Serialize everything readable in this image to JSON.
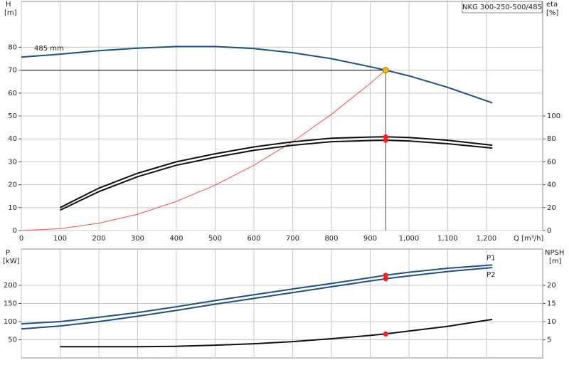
{
  "chart_data": [
    {
      "type": "line",
      "title": "NKG 300-250-500/485",
      "y_label": "H",
      "y_unit": "[m]",
      "y2_label": "eta",
      "y2_unit": "[%]",
      "x_label": "Q [m³/h]",
      "x": [
        0,
        100,
        200,
        300,
        400,
        500,
        600,
        700,
        800,
        900,
        940,
        1000,
        1100,
        1215
      ],
      "xlim": [
        0,
        1345
      ],
      "xticks": [
        0,
        100,
        200,
        300,
        400,
        500,
        600,
        700,
        800,
        900,
        {
          "value": 1000,
          "label": "1,000"
        },
        {
          "value": 1100,
          "label": "1,100"
        },
        {
          "value": 1200,
          "label": "1,200"
        }
      ],
      "ylim": [
        0,
        100
      ],
      "yticks": [
        0,
        10,
        20,
        30,
        40,
        50,
        60,
        70,
        80
      ],
      "y2lim": [
        0,
        200
      ],
      "y2ticks": [
        0,
        20,
        40,
        60,
        80,
        100
      ],
      "grid": true,
      "duty_point": {
        "x": 940,
        "y": 70,
        "color": "#f5b800"
      },
      "series": [
        {
          "name": "485 mm",
          "color": "#1f4e8c",
          "values": [
            75.7,
            77,
            78.5,
            79.6,
            80.3,
            80.3,
            79.4,
            77.6,
            75,
            71.5,
            70,
            67.5,
            62.5,
            55.7
          ]
        },
        {
          "color": "#ff4a4a",
          "values": [
            0,
            0.8,
            3.2,
            7.1,
            12.7,
            19.8,
            28.5,
            38.8,
            50.7,
            64.2,
            70,
            null,
            null,
            null
          ]
        },
        {
          "color": "#111111",
          "axis": "y2",
          "values": [
            null,
            20,
            37,
            50,
            60,
            67,
            73,
            77.5,
            80.6,
            81.6,
            81.8,
            81.2,
            78.8,
            74.5
          ]
        },
        {
          "color": "#111111",
          "axis": "y2",
          "values": [
            null,
            17.8,
            34,
            47,
            57,
            64,
            70,
            74.5,
            77.6,
            78.6,
            78.8,
            78.2,
            75.8,
            72
          ]
        }
      ]
    },
    {
      "type": "line",
      "y_label": "P",
      "y_unit": "[kW]",
      "y2_label": "NPSH",
      "y2_unit": "[m]",
      "x": [
        0,
        100,
        200,
        300,
        400,
        500,
        600,
        700,
        800,
        900,
        940,
        1000,
        1100,
        1215
      ],
      "ylim": [
        0,
        300
      ],
      "yticks": [
        50,
        100,
        150,
        200
      ],
      "y2lim": [
        0,
        30
      ],
      "y2ticks": [
        5,
        10,
        15,
        20
      ],
      "grid": true,
      "series": [
        {
          "name": "P1",
          "color": "#1f4e8c",
          "values": [
            94,
            100,
            112,
            125,
            141,
            158,
            174,
            190,
            205,
            221,
            228,
            236,
            247,
            256
          ]
        },
        {
          "name": "P2",
          "color": "#1f4e8c",
          "values": [
            80,
            88,
            100,
            115,
            131,
            148,
            164,
            180,
            196,
            212,
            218,
            226,
            238,
            249
          ]
        },
        {
          "color": "#111111",
          "axis": "y2",
          "values": [
            null,
            3.1,
            3.1,
            3.1,
            3.2,
            3.5,
            3.9,
            4.5,
            5.3,
            6.2,
            6.6,
            7.4,
            8.7,
            10.6
          ]
        }
      ]
    }
  ]
}
